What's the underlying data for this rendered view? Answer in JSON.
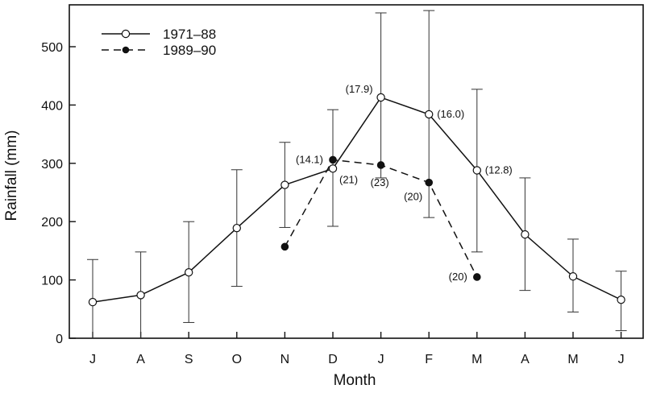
{
  "chart_data": {
    "type": "line",
    "title": "",
    "xlabel": "Month",
    "ylabel": "Rainfall (mm)",
    "ylim": [
      0,
      560
    ],
    "yticks": [
      0,
      100,
      200,
      300,
      400,
      500
    ],
    "categories": [
      "J",
      "A",
      "S",
      "O",
      "N",
      "D",
      "J",
      "F",
      "M",
      "A",
      "M",
      "J"
    ],
    "grid": false,
    "legend_position": "top-left",
    "series": [
      {
        "name": "1971–88",
        "style": "solid-open-circle",
        "values": [
          62,
          74,
          113,
          189,
          263,
          291,
          413,
          384,
          288,
          178,
          106,
          66
        ],
        "err_low": [
          0,
          0,
          27,
          89,
          190,
          192,
          275,
          207,
          148,
          82,
          45,
          13
        ],
        "err_high": [
          135,
          148,
          200,
          289,
          336,
          392,
          558,
          562,
          427,
          275,
          170,
          115
        ]
      },
      {
        "name": "1989–90",
        "style": "dashed-filled-circle",
        "values": [
          null,
          null,
          null,
          null,
          157,
          306,
          297,
          267,
          105,
          null,
          null,
          null
        ]
      }
    ],
    "annotations": [
      {
        "text": "(14.1)",
        "x_index": 5,
        "y": 306,
        "pos": "left"
      },
      {
        "text": "(21)",
        "x_index": 5,
        "y": 291,
        "pos": "right-below"
      },
      {
        "text": "(17.9)",
        "x_index": 6,
        "y": 413,
        "pos": "left-above"
      },
      {
        "text": "(23)",
        "x_index": 6,
        "y": 297,
        "pos": "below"
      },
      {
        "text": "(16.0)",
        "x_index": 7,
        "y": 384,
        "pos": "right"
      },
      {
        "text": "(20)",
        "x_index": 7,
        "y": 267,
        "pos": "left-below"
      },
      {
        "text": "(12.8)",
        "x_index": 8,
        "y": 288,
        "pos": "right"
      },
      {
        "text": "(20)",
        "x_index": 8,
        "y": 105,
        "pos": "left"
      }
    ]
  }
}
